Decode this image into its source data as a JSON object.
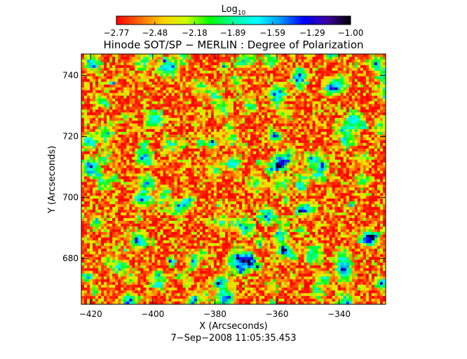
{
  "chart_data": {
    "type": "heatmap",
    "title": "Hinode SOT/SP − MERLIN : Degree of Polarization",
    "xlabel": "X (Arcseconds)",
    "ylabel": "Y (Arcseconds)",
    "footer": "7−Sep−2008 11:05:35.453",
    "xlim": [
      -423,
      -325
    ],
    "ylim": [
      665,
      747
    ],
    "xticks": [
      {
        "value": -420,
        "label": "−420"
      },
      {
        "value": -400,
        "label": "−400"
      },
      {
        "value": -380,
        "label": "−380"
      },
      {
        "value": -360,
        "label": "−360"
      },
      {
        "value": -340,
        "label": "−340"
      }
    ],
    "yticks": [
      {
        "value": 680,
        "label": "680"
      },
      {
        "value": 700,
        "label": "700"
      },
      {
        "value": 720,
        "label": "720"
      },
      {
        "value": 740,
        "label": "740"
      }
    ],
    "colorbar": {
      "title_base": "Log",
      "title_sub": "10",
      "range": [
        -2.77,
        -1.0
      ],
      "ticks": [
        {
          "value": -2.77,
          "label": "−2.77"
        },
        {
          "value": -2.48,
          "label": "−2.48"
        },
        {
          "value": -2.18,
          "label": "−2.18"
        },
        {
          "value": -1.89,
          "label": "−1.89"
        },
        {
          "value": -1.59,
          "label": "−1.59"
        },
        {
          "value": -1.29,
          "label": "−1.29"
        },
        {
          "value": -1.0,
          "label": "−1.00"
        }
      ],
      "stops": [
        "#ff0000",
        "#ff6a00",
        "#ffd200",
        "#c8ff00",
        "#00ff00",
        "#00ffa0",
        "#00ffff",
        "#0096ff",
        "#0000ff",
        "#3c00a0",
        "#000000"
      ]
    },
    "field_summary": {
      "background_value": -2.77,
      "typical_range": [
        -2.77,
        -2.2
      ],
      "sparse_features_range": [
        -2.2,
        -1.0
      ]
    }
  }
}
